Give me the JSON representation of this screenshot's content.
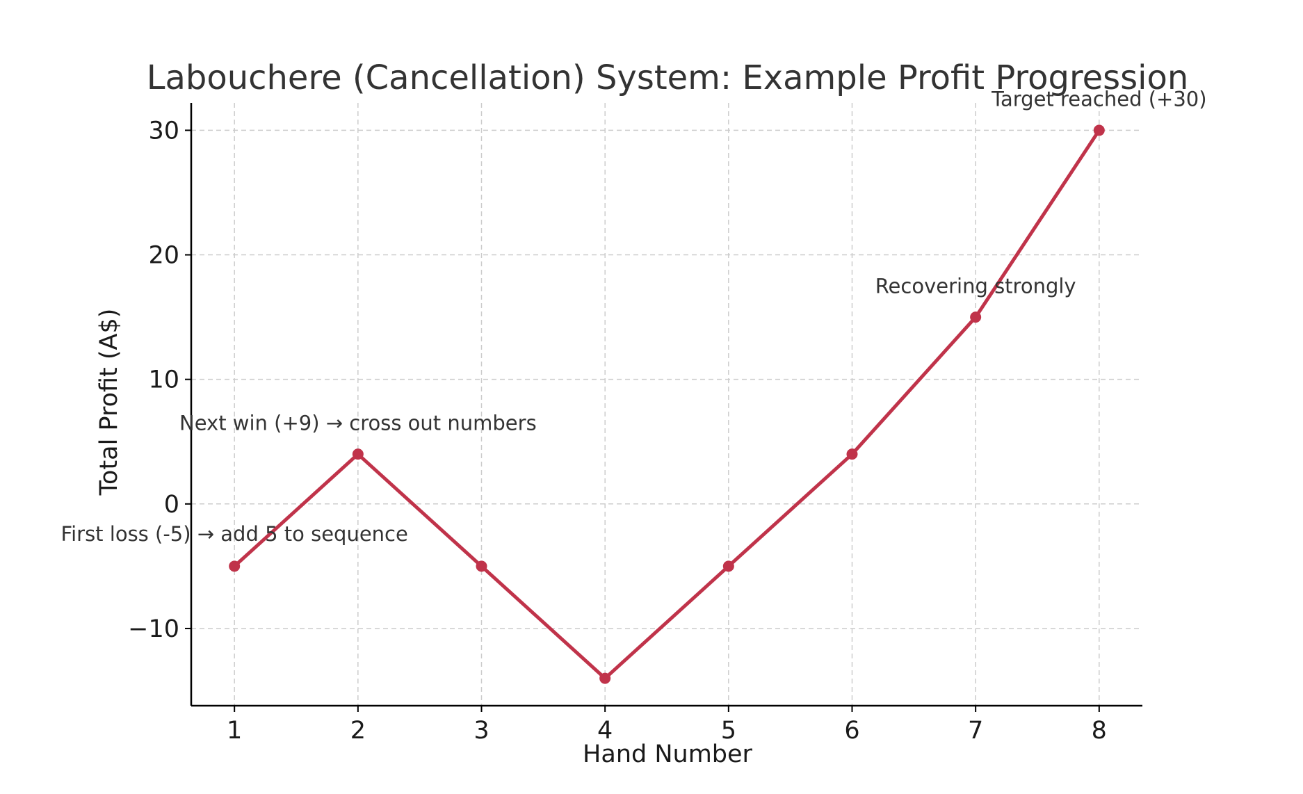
{
  "colors": {
    "series": "#c0334a",
    "grid": "#cccccc",
    "axis": "#000000"
  },
  "chart_data": {
    "type": "line",
    "title": "Labouchere (Cancellation) System: Example Profit Progression",
    "xlabel": "Hand Number",
    "ylabel": "Total Profit (A$)",
    "xlim": [
      0.65,
      8.35
    ],
    "ylim": [
      -16.2,
      32.2
    ],
    "x_ticks": [
      1,
      2,
      3,
      4,
      5,
      6,
      7,
      8
    ],
    "x_tick_labels": [
      "1",
      "2",
      "3",
      "4",
      "5",
      "6",
      "7",
      "8"
    ],
    "y_ticks": [
      -10,
      0,
      10,
      20,
      30
    ],
    "y_tick_labels": [
      "−10",
      "0",
      "10",
      "20",
      "30"
    ],
    "grid": true,
    "series": [
      {
        "name": "Total Profit",
        "x": [
          1,
          2,
          3,
          4,
          5,
          6,
          7,
          8
        ],
        "values": [
          -5,
          4,
          -5,
          -14,
          -5,
          4,
          15,
          30
        ]
      }
    ],
    "annotations": [
      {
        "text": "First loss (-5) → add 5 to sequence",
        "x": 1,
        "y": -2.4,
        "anchor": "middle"
      },
      {
        "text": "Next win (+9) → cross out numbers",
        "x": 2,
        "y": 6.5,
        "anchor": "middle"
      },
      {
        "text": "Recovering strongly",
        "x": 7,
        "y": 17.5,
        "anchor": "middle"
      },
      {
        "text": "Target reached (+30)",
        "x": 8,
        "y": 32.5,
        "anchor": "middle"
      }
    ]
  }
}
